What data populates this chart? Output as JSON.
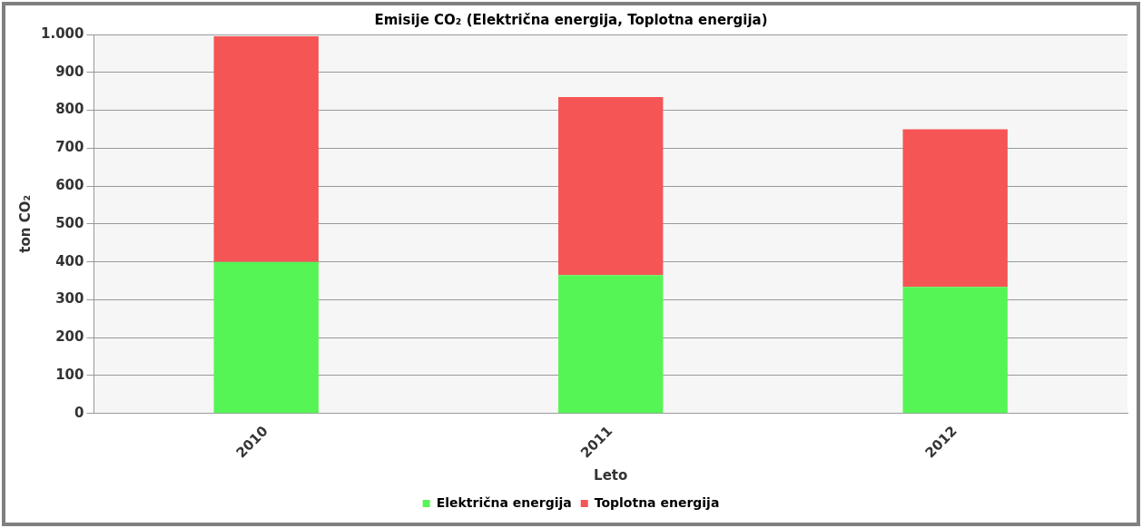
{
  "chart_data": {
    "type": "bar",
    "stacked": true,
    "title": "Emisije CO₂ (Električna energija, Toplotna energija)",
    "xlabel": "Leto",
    "ylabel": "ton CO₂",
    "categories": [
      "2010",
      "2011",
      "2012"
    ],
    "series": [
      {
        "name": "Električna energija",
        "color": "#55f555",
        "values": [
          400,
          365,
          334
        ]
      },
      {
        "name": "Toplotna energija",
        "color": "#f55555",
        "values": [
          595,
          470,
          416
        ]
      }
    ],
    "ylim": [
      0,
      1000
    ],
    "yticks": [
      0,
      100,
      200,
      300,
      400,
      500,
      600,
      700,
      800,
      900,
      {
        "value": 1000,
        "label": "1.000"
      }
    ],
    "grid": "y",
    "legend": "bottom"
  }
}
